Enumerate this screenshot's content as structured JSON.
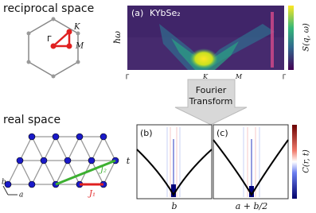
{
  "reciprocal_space": {
    "title": "reciprocal space",
    "points": {
      "gamma": "Γ",
      "k": "K",
      "m": "M"
    }
  },
  "real_space": {
    "title": "real space",
    "axes": {
      "b": "b",
      "a": "a"
    },
    "couplings": {
      "j1": "J₁",
      "j2": "J₂"
    }
  },
  "panel_a": {
    "label": "(a)",
    "material": "KYbSe₂",
    "y_label": "ħω",
    "colorbar_label": "S(q, ω)",
    "x_ticks": [
      "Γ",
      "K",
      "M",
      "Γ"
    ]
  },
  "transform_arrow": {
    "lines": [
      "Fourier",
      "Transform"
    ]
  },
  "panel_b": {
    "label": "(b)",
    "y_label": "t",
    "x_label": "b"
  },
  "panel_c": {
    "label": "(c)",
    "x_label": "a + b/2",
    "colorbar_label": "C(r, t)"
  }
}
